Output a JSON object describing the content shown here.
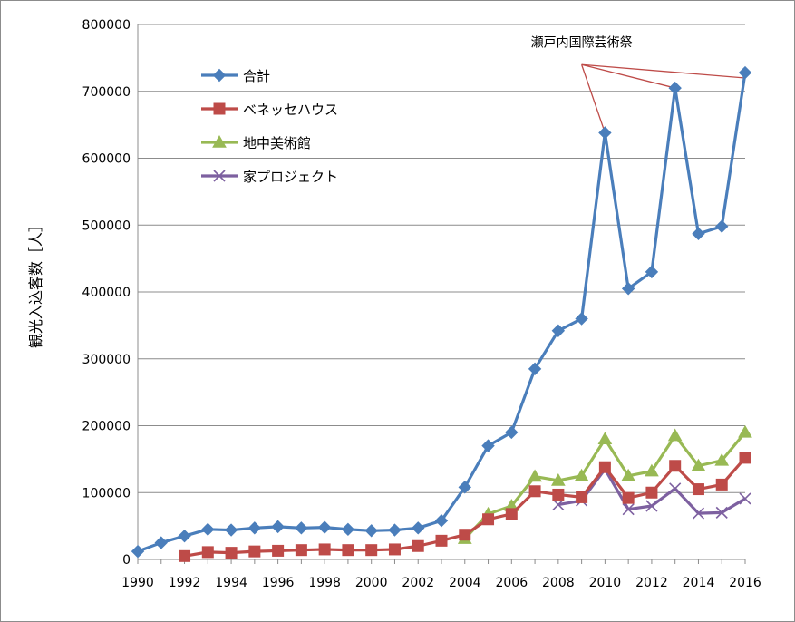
{
  "chart_data": {
    "type": "line",
    "title": "",
    "xlabel": "",
    "ylabel": "観光入込客数［人］",
    "ylim": [
      0,
      800000
    ],
    "yticks": [
      0,
      100000,
      200000,
      300000,
      400000,
      500000,
      600000,
      700000,
      800000
    ],
    "xlim": [
      1990,
      2016
    ],
    "xticks": [
      1990,
      1992,
      1994,
      1996,
      1998,
      2000,
      2002,
      2004,
      2006,
      2008,
      2010,
      2012,
      2014,
      2016
    ],
    "grid": "horizontal",
    "legend_position": "top-left",
    "series": [
      {
        "name": "合計",
        "color": "#4a7ebb",
        "marker": "diamond",
        "x": [
          1990,
          1991,
          1992,
          1993,
          1994,
          1995,
          1996,
          1997,
          1998,
          1999,
          2000,
          2001,
          2002,
          2003,
          2004,
          2005,
          2006,
          2007,
          2008,
          2009,
          2010,
          2011,
          2012,
          2013,
          2014,
          2015,
          2016
        ],
        "y": [
          12000,
          25000,
          35000,
          45000,
          44000,
          47000,
          49000,
          47000,
          48000,
          45000,
          43000,
          44000,
          47000,
          58000,
          108000,
          170000,
          190000,
          285000,
          342000,
          360000,
          638000,
          405000,
          430000,
          705000,
          487000,
          498000,
          728000
        ]
      },
      {
        "name": "ベネッセハウス",
        "color": "#be4b48",
        "marker": "square",
        "x": [
          1992,
          1993,
          1994,
          1995,
          1996,
          1997,
          1998,
          1999,
          2000,
          2001,
          2002,
          2003,
          2004,
          2005,
          2006,
          2007,
          2008,
          2009,
          2010,
          2011,
          2012,
          2013,
          2014,
          2015,
          2016
        ],
        "y": [
          5000,
          11000,
          10000,
          12000,
          13000,
          14000,
          15000,
          14000,
          14000,
          15000,
          20000,
          28000,
          37000,
          60000,
          68000,
          102000,
          97000,
          93000,
          138000,
          92000,
          100000,
          140000,
          105000,
          112000,
          152000
        ]
      },
      {
        "name": "地中美術館",
        "color": "#98b954",
        "marker": "triangle",
        "x": [
          2004,
          2005,
          2006,
          2007,
          2008,
          2009,
          2010,
          2011,
          2012,
          2013,
          2014,
          2015,
          2016
        ],
        "y": [
          31000,
          68000,
          80000,
          124000,
          118000,
          125000,
          180000,
          125000,
          132000,
          185000,
          140000,
          148000,
          190000
        ]
      },
      {
        "name": "家プロジェクト",
        "color": "#7d60a0",
        "marker": "x",
        "x": [
          2008,
          2009,
          2010,
          2011,
          2012,
          2013,
          2014,
          2015,
          2016
        ],
        "y": [
          82000,
          88000,
          135000,
          75000,
          80000,
          106000,
          69000,
          70000,
          91000
        ]
      }
    ],
    "annotation": {
      "text": "瀬戸内国際芸術祭",
      "color": "#be4b48",
      "anchor": {
        "x": 2009,
        "y": 740000
      },
      "targets": [
        {
          "x": 2010,
          "y": 638000
        },
        {
          "x": 2013,
          "y": 705000
        },
        {
          "x": 2016,
          "y": 720000
        }
      ]
    }
  }
}
